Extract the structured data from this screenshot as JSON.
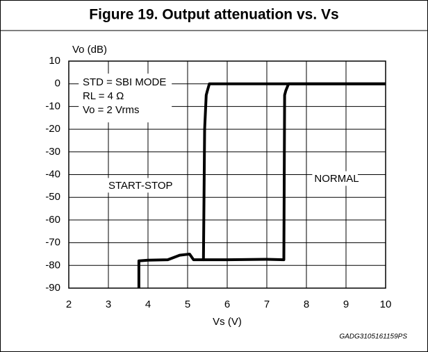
{
  "chart_data": {
    "type": "line",
    "title": "Figure 19. Output attenuation vs. Vs",
    "y_label": "Vo (dB)",
    "x_label": "Vs (V)",
    "annotations": [
      "STD = SBI MODE",
      "RL = 4 Ω",
      "Vo = 2 Vrms"
    ],
    "code": "GADG3105161159PS",
    "xlim": [
      2,
      10
    ],
    "xticks": [
      2,
      3,
      4,
      5,
      6,
      7,
      8,
      9,
      10
    ],
    "ylim": [
      -90,
      10
    ],
    "yticks": [
      10,
      0,
      -10,
      -20,
      -30,
      -40,
      -50,
      -60,
      -70,
      -80,
      -90
    ],
    "grid": true,
    "series": [
      {
        "name": "START-STOP",
        "color": "#000000",
        "x": [
          3.77,
          3.77,
          4.0,
          4.5,
          4.8,
          5.05,
          5.15,
          5.25,
          5.4,
          5.43,
          5.47,
          5.5,
          5.55,
          6,
          10
        ],
        "values": [
          -90,
          -78,
          -77.7,
          -77.5,
          -75.5,
          -75,
          -77.5,
          -77.5,
          -77.5,
          -20,
          -5,
          -3,
          0,
          0,
          0
        ]
      },
      {
        "name": "NORMAL",
        "color": "#000000",
        "x": [
          5.4,
          6,
          7,
          7.43,
          7.45,
          7.48,
          7.55,
          8,
          10
        ],
        "values": [
          -77.5,
          -77.5,
          -77.3,
          -77.5,
          -5,
          -3,
          0,
          0,
          0
        ]
      }
    ]
  }
}
